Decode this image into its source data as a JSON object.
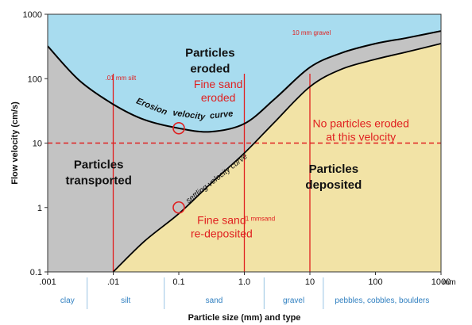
{
  "chart_data": {
    "type": "area",
    "title": "",
    "xlabel": "Particle size (mm) and type",
    "ylabel": "Flow velocity (cm/s)",
    "x_scale": "log",
    "y_scale": "log",
    "xlim": [
      0.001,
      1000
    ],
    "ylim": [
      0.1,
      1000
    ],
    "x_unit_label": "mm",
    "x_ticks": [
      {
        "value": 0.001,
        "label": ".001"
      },
      {
        "value": 0.01,
        "label": ".01"
      },
      {
        "value": 0.1,
        "label": "0.1"
      },
      {
        "value": 1,
        "label": "1.0"
      },
      {
        "value": 10,
        "label": "10"
      },
      {
        "value": 100,
        "label": "100"
      },
      {
        "value": 1000,
        "label": "1000"
      }
    ],
    "y_ticks": [
      {
        "value": 0.1,
        "label": "0.1"
      },
      {
        "value": 1,
        "label": "1"
      },
      {
        "value": 10,
        "label": "10"
      },
      {
        "value": 100,
        "label": "100"
      },
      {
        "value": 1000,
        "label": "1000"
      }
    ],
    "size_classes": [
      {
        "label": "clay",
        "from": 0.001,
        "to": 0.004
      },
      {
        "label": "silt",
        "from": 0.004,
        "to": 0.06
      },
      {
        "label": "sand",
        "from": 0.06,
        "to": 2
      },
      {
        "label": "gravel",
        "from": 2,
        "to": 16
      },
      {
        "label": "pebbles, cobbles, boulders",
        "from": 16,
        "to": 1000
      }
    ],
    "series": [
      {
        "name": "Erosion velocity curve",
        "x": [
          0.001,
          0.003,
          0.01,
          0.03,
          0.1,
          0.3,
          1,
          3,
          10,
          30,
          100,
          300,
          1000
        ],
        "y": [
          320,
          95,
          40,
          23,
          17,
          15,
          20,
          50,
          150,
          250,
          350,
          430,
          550
        ]
      },
      {
        "name": "Settling velocity curve",
        "x": [
          0.01,
          0.03,
          0.1,
          0.3,
          1,
          3,
          10,
          30,
          100,
          300,
          1000
        ],
        "y": [
          0.1,
          0.3,
          0.8,
          2.3,
          7,
          22,
          75,
          140,
          200,
          260,
          350
        ]
      }
    ],
    "reference_lines": [
      {
        "axis": "y",
        "value": 10,
        "style": "dashed",
        "color": "#e02020"
      },
      {
        "axis": "x",
        "value": 0.01,
        "color": "#e02020",
        "label": ".01 mm silt"
      },
      {
        "axis": "x",
        "value": 1,
        "color": "#e02020",
        "label": "1 mmsand"
      },
      {
        "axis": "x",
        "value": 10,
        "color": "#e02020",
        "label": "10 mm gravel"
      }
    ],
    "region_labels": [
      {
        "text": "Particles eroded",
        "x": 0.3,
        "y": 190
      },
      {
        "text": "Particles transported",
        "x": 0.006,
        "y": 3.5
      },
      {
        "text": "Particles deposited",
        "x": 23,
        "y": 3
      }
    ],
    "annotations": [
      {
        "text": "Fine sand eroded",
        "x": 0.4,
        "y": 65,
        "color": "#e02020"
      },
      {
        "text": "No particles eroded at this velocity",
        "x": 60,
        "y": 16,
        "color": "#e02020"
      },
      {
        "text": "Fine sand re-deposited",
        "x": 0.45,
        "y": 0.5,
        "color": "#e02020"
      }
    ],
    "markers": [
      {
        "x": 0.1,
        "y": 17,
        "shape": "circle",
        "color": "#e02020"
      },
      {
        "x": 0.1,
        "y": 1,
        "shape": "circle",
        "color": "#e02020"
      }
    ],
    "colors": {
      "eroded": "#a8dcef",
      "transported": "#c3c3c3",
      "deposited": "#f2e3a6",
      "reference": "#e02020",
      "class_text": "#2f7fc0",
      "class_divider": "#9ac4e4",
      "curve": "#000000"
    }
  }
}
